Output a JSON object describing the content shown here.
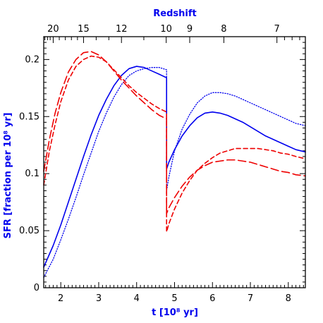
{
  "chart_data": {
    "type": "line",
    "title": "",
    "xlabel": "t [10⁸ yr]",
    "ylabel": "SFR [fraction per 10⁸ yr]",
    "top_xlabel": "Redshift",
    "xlim": [
      1.55,
      8.45
    ],
    "ylim": [
      0,
      0.22
    ],
    "xticks": [
      2,
      3,
      4,
      5,
      6,
      7,
      8
    ],
    "yticks": [
      0,
      0.05,
      0.1,
      0.15,
      0.2
    ],
    "ytick_labels": [
      "0",
      "0.05",
      "0.1",
      "0.15",
      "0.2"
    ],
    "top_ticks": [
      {
        "label": "20",
        "t": 1.8
      },
      {
        "label": "15",
        "t": 2.6
      },
      {
        "label": "12",
        "t": 3.6
      },
      {
        "label": "10",
        "t": 4.78
      },
      {
        "label": "9",
        "t": 5.4
      },
      {
        "label": "8",
        "t": 6.3
      },
      {
        "label": "7",
        "t": 7.7
      }
    ],
    "grid": false,
    "legend": "none",
    "series": [
      {
        "color": "#0000ee",
        "style": "solid",
        "x": [
          1.55,
          1.8,
          2.0,
          2.2,
          2.4,
          2.6,
          2.8,
          3.0,
          3.2,
          3.4,
          3.6,
          3.8,
          4.0,
          4.2,
          4.4,
          4.6,
          4.79,
          4.79,
          4.85,
          5.0,
          5.2,
          5.4,
          5.6,
          5.8,
          6.0,
          6.2,
          6.4,
          6.6,
          6.8,
          7.0,
          7.2,
          7.4,
          7.6,
          7.8,
          8.0,
          8.2,
          8.45
        ],
        "y": [
          0.018,
          0.037,
          0.055,
          0.075,
          0.095,
          0.115,
          0.134,
          0.151,
          0.165,
          0.177,
          0.186,
          0.192,
          0.194,
          0.193,
          0.19,
          0.187,
          0.184,
          0.104,
          0.11,
          0.121,
          0.133,
          0.142,
          0.149,
          0.153,
          0.154,
          0.153,
          0.151,
          0.148,
          0.145,
          0.141,
          0.137,
          0.133,
          0.13,
          0.127,
          0.124,
          0.121,
          0.119
        ]
      },
      {
        "color": "#0000ee",
        "style": "dotted",
        "x": [
          1.55,
          1.8,
          2.0,
          2.2,
          2.4,
          2.6,
          2.8,
          3.0,
          3.2,
          3.4,
          3.6,
          3.8,
          4.0,
          4.2,
          4.4,
          4.6,
          4.79,
          4.79,
          4.85,
          5.0,
          5.2,
          5.4,
          5.6,
          5.8,
          6.0,
          6.2,
          6.4,
          6.6,
          6.8,
          7.0,
          7.2,
          7.4,
          7.6,
          7.8,
          8.0,
          8.2,
          8.45
        ],
        "y": [
          0.009,
          0.025,
          0.042,
          0.06,
          0.079,
          0.099,
          0.118,
          0.137,
          0.153,
          0.167,
          0.178,
          0.186,
          0.19,
          0.192,
          0.193,
          0.193,
          0.191,
          0.085,
          0.097,
          0.12,
          0.139,
          0.152,
          0.162,
          0.168,
          0.171,
          0.171,
          0.17,
          0.168,
          0.165,
          0.162,
          0.159,
          0.156,
          0.153,
          0.15,
          0.147,
          0.144,
          0.142
        ]
      },
      {
        "color": "#ee0000",
        "style": "long-dashed",
        "x": [
          1.55,
          1.7,
          1.85,
          2.0,
          2.2,
          2.4,
          2.6,
          2.8,
          3.0,
          3.2,
          3.4,
          3.6,
          3.8,
          4.0,
          4.2,
          4.4,
          4.6,
          4.79,
          4.79,
          4.85,
          5.0,
          5.2,
          5.4,
          5.6,
          5.8,
          6.0,
          6.2,
          6.4,
          6.6,
          6.8,
          7.0,
          7.2,
          7.4,
          7.6,
          7.8,
          8.0,
          8.2,
          8.45
        ],
        "y": [
          0.102,
          0.13,
          0.153,
          0.171,
          0.189,
          0.2,
          0.206,
          0.207,
          0.204,
          0.198,
          0.19,
          0.182,
          0.175,
          0.168,
          0.162,
          0.156,
          0.151,
          0.148,
          0.065,
          0.07,
          0.079,
          0.089,
          0.097,
          0.103,
          0.107,
          0.11,
          0.111,
          0.112,
          0.112,
          0.111,
          0.11,
          0.108,
          0.106,
          0.104,
          0.102,
          0.101,
          0.099,
          0.098
        ]
      },
      {
        "color": "#ee0000",
        "style": "short-dashed",
        "x": [
          1.55,
          1.7,
          1.85,
          2.0,
          2.2,
          2.4,
          2.6,
          2.8,
          3.0,
          3.2,
          3.4,
          3.6,
          3.8,
          4.0,
          4.2,
          4.4,
          4.6,
          4.79,
          4.79,
          4.85,
          5.0,
          5.2,
          5.4,
          5.6,
          5.8,
          6.0,
          6.2,
          6.4,
          6.6,
          6.8,
          7.0,
          7.2,
          7.4,
          7.6,
          7.8,
          8.0,
          8.2,
          8.45
        ],
        "y": [
          0.09,
          0.12,
          0.143,
          0.163,
          0.182,
          0.194,
          0.2,
          0.203,
          0.202,
          0.198,
          0.191,
          0.184,
          0.177,
          0.171,
          0.166,
          0.161,
          0.157,
          0.154,
          0.049,
          0.056,
          0.069,
          0.083,
          0.094,
          0.103,
          0.109,
          0.114,
          0.118,
          0.12,
          0.122,
          0.122,
          0.122,
          0.122,
          0.121,
          0.12,
          0.118,
          0.117,
          0.115,
          0.113
        ]
      }
    ]
  }
}
